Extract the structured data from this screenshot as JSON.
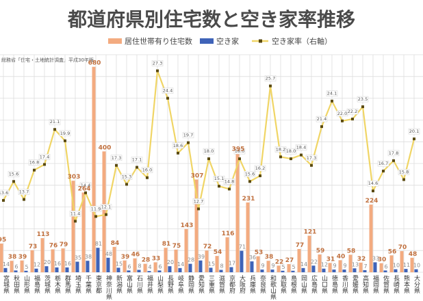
{
  "colors": {
    "bar1": "#f3ab80",
    "bar2": "#3f63b8",
    "line": "#f0d565",
    "marker": "#5a4a10"
  },
  "chart_data": {
    "type": "bar+line",
    "title": "都道府県別住宅数と空き家率推移",
    "source_note": "総務省「住宅・土地統計調査」平成30年版",
    "legend": [
      "居住世帯有り住宅数",
      "空き家",
      "空き家率（右軸）"
    ],
    "legend_position": "top",
    "grid": true,
    "categories": [
      "宮城県",
      "秋田県",
      "山形県",
      "福島県",
      "茨城県",
      "栃木県",
      "群馬県",
      "埼玉県",
      "千葉県",
      "東京都",
      "神奈川県",
      "新潟県",
      "富山県",
      "石川県",
      "福井県",
      "山梨県",
      "長野県",
      "岐阜県",
      "静岡県",
      "愛知県",
      "三重県",
      "滋賀県",
      "京都府",
      "大阪府",
      "兵庫県",
      "奈良県",
      "和歌山県",
      "鳥取県",
      "島根県",
      "岡山県",
      "広島県",
      "山口県",
      "徳島県",
      "香川県",
      "愛媛県",
      "高知県",
      "福岡県",
      "佐賀県",
      "長崎県",
      "熊本県",
      "大分県"
    ],
    "series": [
      {
        "name": "居住世帯有り住宅数",
        "axis": "left",
        "values": [
          95,
          38,
          39,
          73,
          113,
          76,
          79,
          303,
          264,
          680,
          400,
          84,
          39,
          46,
          28,
          33,
          81,
          75,
          143,
          307,
          72,
          54,
          116,
          395,
          231,
          53,
          38,
          22,
          27,
          77,
          121,
          59,
          31,
          40,
          58,
          32,
          224,
          30,
          56,
          70,
          48
        ]
      },
      {
        "name": "空き家",
        "axis": "left",
        "values": [
          14,
          6,
          5,
          12,
          20,
          16,
          16,
          35,
          38,
          81,
          48,
          15,
          6,
          8,
          4,
          6,
          20,
          14,
          28,
          39,
          15,
          8,
          17,
          71,
          36,
          9,
          9,
          5,
          5,
          14,
          22,
          12,
          9,
          9,
          13,
          7,
          33,
          6,
          10,
          11,
          10
        ]
      },
      {
        "name": "空き家率（右軸）",
        "axis": "right",
        "values": [
          13.6,
          15.6,
          13.7,
          16.8,
          17.4,
          21.1,
          19.9,
          11.4,
          14.4,
          11.9,
          12.1,
          17.3,
          15.3,
          17.1,
          16.0,
          27.3,
          24.4,
          18.6,
          19.7,
          12.7,
          18.0,
          15.1,
          14.8,
          18.0,
          15.6,
          16.2,
          25.7,
          18.2,
          18.0,
          18.4,
          17.3,
          21.4,
          24.1,
          22.0,
          22.2,
          23.5,
          14.6,
          16.7,
          17.8,
          15.8,
          20.1
        ]
      }
    ],
    "left_axis_range": [
      0,
      720
    ],
    "right_axis_range": [
      6,
      29
    ]
  }
}
